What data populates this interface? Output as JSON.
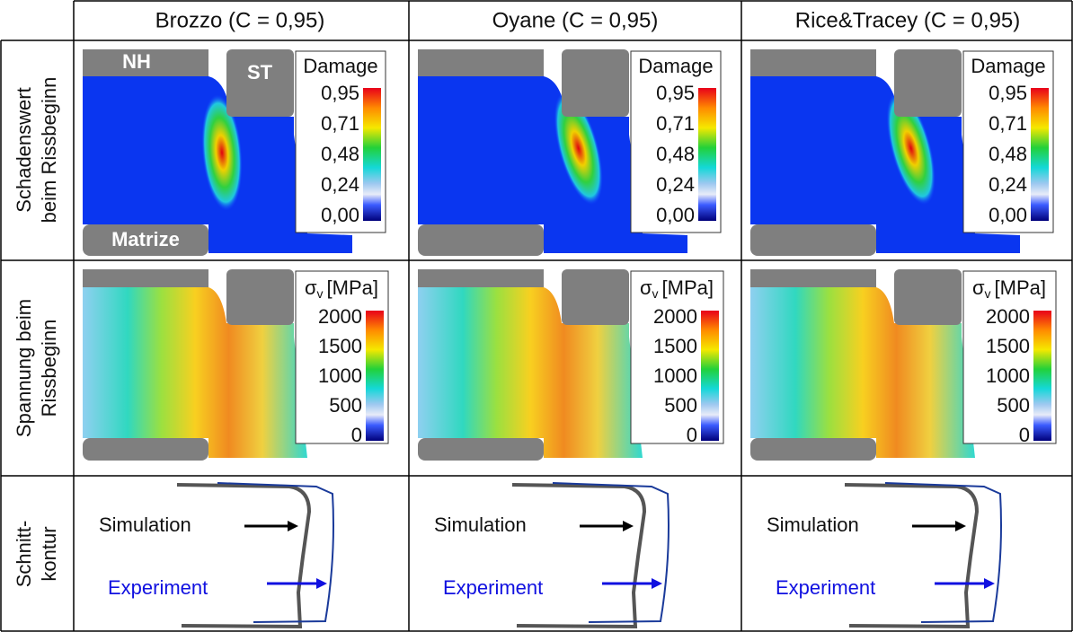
{
  "columns": [
    "Brozzo (C = 0,95)",
    "Oyane (C = 0,95)",
    "Rice&Tracey (C = 0,95)"
  ],
  "rows": [
    [
      "Schadenswert",
      "beim Rissbeginn"
    ],
    [
      "Spannung beim",
      "Rissbeginn"
    ],
    [
      "Schnitt-",
      "kontur"
    ]
  ],
  "tool_labels": {
    "nh": "NH",
    "st": "ST",
    "matrize": "Matrize"
  },
  "damage_legend": {
    "title": "Damage",
    "ticks": [
      "0,95",
      "0,71",
      "0,48",
      "0,24",
      "0,00"
    ]
  },
  "stress_legend": {
    "symbol": "σ",
    "subscript": "v",
    "unit": "[MPa]",
    "ticks": [
      "2000",
      "1500",
      "1000",
      "500",
      "0"
    ]
  },
  "contour": {
    "simulation": "Simulation",
    "experiment": "Experiment"
  }
}
